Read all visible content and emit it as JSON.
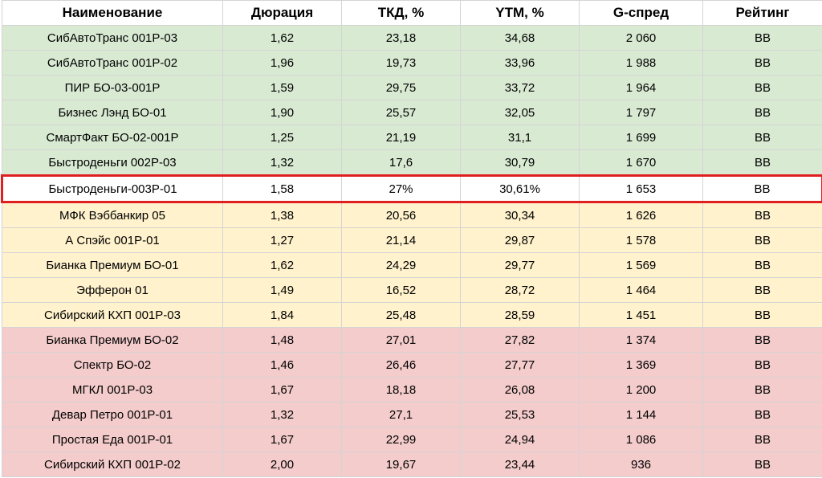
{
  "colors": {
    "green": "#d9ead3",
    "yellow": "#fff2cc",
    "red": "#f4cccc",
    "highlight_border": "#e02020"
  },
  "table": {
    "headers": [
      "Наименование",
      "Дюрация",
      "ТКД, %",
      "YTM, %",
      "G-спред",
      "Рейтинг"
    ],
    "rows": [
      {
        "group": "green",
        "cells": [
          "СибАвтоТранс 001Р-03",
          "1,62",
          "23,18",
          "34,68",
          "2 060",
          "BB"
        ]
      },
      {
        "group": "green",
        "cells": [
          "СибАвтоТранс 001Р-02",
          "1,96",
          "19,73",
          "33,96",
          "1 988",
          "BB"
        ]
      },
      {
        "group": "green",
        "cells": [
          "ПИР БО-03-001Р",
          "1,59",
          "29,75",
          "33,72",
          "1 964",
          "BB"
        ]
      },
      {
        "group": "green",
        "cells": [
          "Бизнес Лэнд БО-01",
          "1,90",
          "25,57",
          "32,05",
          "1 797",
          "BB"
        ]
      },
      {
        "group": "green",
        "cells": [
          "СмартФакт БО-02-001Р",
          "1,25",
          "21,19",
          "31,1",
          "1 699",
          "BB"
        ]
      },
      {
        "group": "green",
        "cells": [
          "Быстроденьги 002Р-03",
          "1,32",
          "17,6",
          "30,79",
          "1 670",
          "BB"
        ]
      },
      {
        "group": "highlight",
        "cells": [
          "Быстроденьги-003Р-01",
          "1,58",
          "27%",
          "30,61%",
          "1 653",
          "BB"
        ]
      },
      {
        "group": "yellow",
        "cells": [
          "МФК Вэббанкир 05",
          "1,38",
          "20,56",
          "30,34",
          "1 626",
          "BB"
        ]
      },
      {
        "group": "yellow",
        "cells": [
          "А Спэйс 001Р-01",
          "1,27",
          "21,14",
          "29,87",
          "1 578",
          "BB"
        ]
      },
      {
        "group": "yellow",
        "cells": [
          "Бианка Премиум БО-01",
          "1,62",
          "24,29",
          "29,77",
          "1 569",
          "BB"
        ]
      },
      {
        "group": "yellow",
        "cells": [
          "Эфферон 01",
          "1,49",
          "16,52",
          "28,72",
          "1 464",
          "BB"
        ]
      },
      {
        "group": "yellow",
        "cells": [
          "Сибирский КХП 001Р-03",
          "1,84",
          "25,48",
          "28,59",
          "1 451",
          "BB"
        ]
      },
      {
        "group": "red",
        "cells": [
          "Бианка Премиум БО-02",
          "1,48",
          "27,01",
          "27,82",
          "1 374",
          "BB"
        ]
      },
      {
        "group": "red",
        "cells": [
          "Спектр БО-02",
          "1,46",
          "26,46",
          "27,77",
          "1 369",
          "BB"
        ]
      },
      {
        "group": "red",
        "cells": [
          "МГКЛ 001Р-03",
          "1,67",
          "18,18",
          "26,08",
          "1 200",
          "BB"
        ]
      },
      {
        "group": "red",
        "cells": [
          "Девар Петро 001Р-01",
          "1,32",
          "27,1",
          "25,53",
          "1 144",
          "BB"
        ]
      },
      {
        "group": "red",
        "cells": [
          "Простая Еда 001Р-01",
          "1,67",
          "22,99",
          "24,94",
          "1 086",
          "BB"
        ]
      },
      {
        "group": "red",
        "cells": [
          "Сибирский КХП 001Р-02",
          "2,00",
          "19,67",
          "23,44",
          "936",
          "BB"
        ]
      }
    ]
  }
}
